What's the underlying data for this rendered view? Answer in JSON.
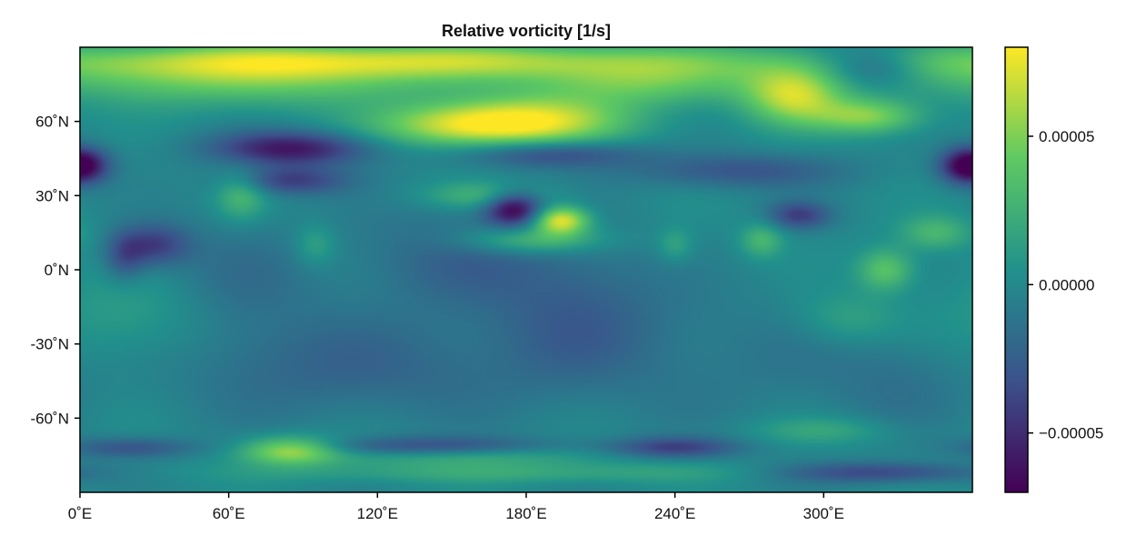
{
  "chart_data": {
    "type": "heatmap",
    "title": "Relative vorticity [1/s]",
    "xlabel": "",
    "ylabel": "",
    "colormap": "viridis",
    "colormap_stops": [
      "#440154",
      "#3b528b",
      "#21918c",
      "#5ec962",
      "#fde725"
    ],
    "frame_color": "#000000",
    "x_range": [
      0,
      360
    ],
    "y_range": [
      -90,
      90
    ],
    "x_ticks": [
      {
        "value": 0,
        "label": "0˚E"
      },
      {
        "value": 60,
        "label": "60˚E"
      },
      {
        "value": 120,
        "label": "120˚E"
      },
      {
        "value": 180,
        "label": "180˚E"
      },
      {
        "value": 240,
        "label": "240˚E"
      },
      {
        "value": 300,
        "label": "300˚E"
      }
    ],
    "y_ticks": [
      {
        "value": 60,
        "label": "60˚N"
      },
      {
        "value": 30,
        "label": "30˚N"
      },
      {
        "value": 0,
        "label": "0˚N"
      },
      {
        "value": -30,
        "label": "-30˚N"
      },
      {
        "value": -60,
        "label": "-60˚N"
      }
    ],
    "colorbar": {
      "range": [
        -7e-05,
        8e-05
      ],
      "ticks": [
        {
          "value": 5e-05,
          "label": "0.00005"
        },
        {
          "value": 0.0,
          "label": "0.00000"
        },
        {
          "value": -5e-05,
          "label": "−0.00005"
        }
      ]
    },
    "background_value": 0.0,
    "features": [
      {
        "lon": 0,
        "lat": 80,
        "value": 2e-05,
        "width": 360,
        "height": 7
      },
      {
        "lon": 120,
        "lat": 85,
        "value": 5e-05,
        "width": 100,
        "height": 5
      },
      {
        "lon": 70,
        "lat": 76,
        "value": 3e-05,
        "width": 50,
        "height": 8
      },
      {
        "lon": 180,
        "lat": 60,
        "value": 7e-05,
        "width": 28,
        "height": 7
      },
      {
        "lon": 150,
        "lat": 58,
        "value": 4e-05,
        "width": 25,
        "height": 6
      },
      {
        "lon": 288,
        "lat": 70,
        "value": 6e-05,
        "width": 14,
        "height": 8
      },
      {
        "lon": 318,
        "lat": 62,
        "value": 5e-05,
        "width": 15,
        "height": 5
      },
      {
        "lon": 225,
        "lat": 75,
        "value": 3e-05,
        "width": 30,
        "height": 7
      },
      {
        "lon": 320,
        "lat": 82,
        "value": -4e-05,
        "width": 15,
        "height": 6
      },
      {
        "lon": 190,
        "lat": 47,
        "value": -4e-05,
        "width": 25,
        "height": 4
      },
      {
        "lon": 85,
        "lat": 49,
        "value": -6e-05,
        "width": 22,
        "height": 5
      },
      {
        "lon": 0,
        "lat": 43,
        "value": -5e-05,
        "width": 8,
        "height": 5
      },
      {
        "lon": 358,
        "lat": 41,
        "value": -4e-05,
        "width": 8,
        "height": 5
      },
      {
        "lon": 85,
        "lat": 36,
        "value": -4e-05,
        "width": 16,
        "height": 4
      },
      {
        "lon": 175,
        "lat": 25,
        "value": -7e-05,
        "width": 8,
        "height": 5
      },
      {
        "lon": 194,
        "lat": 20,
        "value": 8e-05,
        "width": 8,
        "height": 4
      },
      {
        "lon": 182,
        "lat": 12,
        "value": 4e-05,
        "width": 20,
        "height": 4
      },
      {
        "lon": 165,
        "lat": 30,
        "value": 3e-05,
        "width": 18,
        "height": 4
      },
      {
        "lon": 290,
        "lat": 22,
        "value": -4e-05,
        "width": 9,
        "height": 4
      },
      {
        "lon": 265,
        "lat": 40,
        "value": -3e-05,
        "width": 30,
        "height": 5
      },
      {
        "lon": 30,
        "lat": 10,
        "value": -4e-05,
        "width": 10,
        "height": 6
      },
      {
        "lon": 18,
        "lat": 5,
        "value": -3e-05,
        "width": 6,
        "height": 7
      },
      {
        "lon": 65,
        "lat": 30,
        "value": 3e-05,
        "width": 7,
        "height": 7
      },
      {
        "lon": 95,
        "lat": 10,
        "value": 2e-05,
        "width": 6,
        "height": 6
      },
      {
        "lon": 240,
        "lat": 10,
        "value": 2e-05,
        "width": 5,
        "height": 5
      },
      {
        "lon": 275,
        "lat": 12,
        "value": 3e-05,
        "width": 6,
        "height": 5
      },
      {
        "lon": 325,
        "lat": 0,
        "value": 4e-05,
        "width": 8,
        "height": 6
      },
      {
        "lon": 345,
        "lat": 15,
        "value": 3e-05,
        "width": 10,
        "height": 5
      },
      {
        "lon": 60,
        "lat": -10,
        "value": -2e-05,
        "width": 25,
        "height": 20
      },
      {
        "lon": 30,
        "lat": -20,
        "value": 2e-05,
        "width": 30,
        "height": 15
      },
      {
        "lon": 110,
        "lat": -40,
        "value": -2e-05,
        "width": 50,
        "height": 15
      },
      {
        "lon": 150,
        "lat": 5,
        "value": -2e-05,
        "width": 30,
        "height": 15
      },
      {
        "lon": 200,
        "lat": -15,
        "value": -2e-05,
        "width": 25,
        "height": 20
      },
      {
        "lon": 260,
        "lat": -35,
        "value": -1e-05,
        "width": 60,
        "height": 20
      },
      {
        "lon": 310,
        "lat": -20,
        "value": 2e-05,
        "width": 15,
        "height": 8
      },
      {
        "lon": 330,
        "lat": -45,
        "value": -1e-05,
        "width": 20,
        "height": 15
      },
      {
        "lon": 85,
        "lat": -73,
        "value": 6e-05,
        "width": 14,
        "height": 4
      },
      {
        "lon": 150,
        "lat": -75,
        "value": 3e-05,
        "width": 40,
        "height": 3
      },
      {
        "lon": 140,
        "lat": -72,
        "value": -4e-05,
        "width": 35,
        "height": 3
      },
      {
        "lon": 240,
        "lat": -72,
        "value": -4e-05,
        "width": 18,
        "height": 3
      },
      {
        "lon": 320,
        "lat": -82,
        "value": -4e-05,
        "width": 30,
        "height": 3
      },
      {
        "lon": 20,
        "lat": -72,
        "value": -3e-05,
        "width": 18,
        "height": 3
      },
      {
        "lon": 180,
        "lat": -82,
        "value": 2e-05,
        "width": 80,
        "height": 3
      },
      {
        "lon": 300,
        "lat": -65,
        "value": 2e-05,
        "width": 20,
        "height": 4
      }
    ]
  }
}
